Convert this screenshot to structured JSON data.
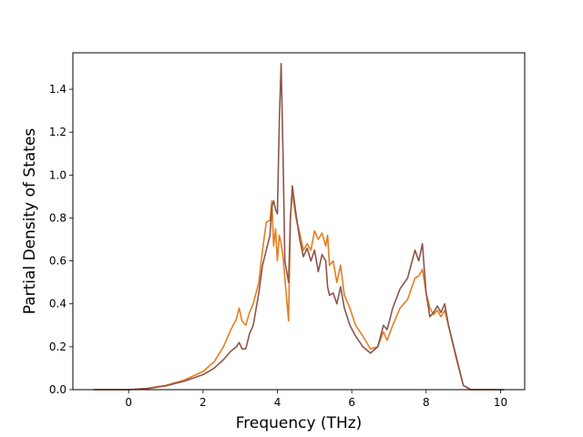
{
  "chart_data": {
    "type": "line",
    "title": "",
    "xlabel": "Frequency (THz)",
    "ylabel": "Partial Density of States",
    "xlim": [
      -1.5,
      10.65
    ],
    "ylim": [
      0.0,
      1.57
    ],
    "xticks": [
      0,
      2,
      4,
      6,
      8,
      10
    ],
    "yticks": [
      0.0,
      0.2,
      0.4,
      0.6,
      0.8,
      1.0,
      1.2,
      1.4
    ],
    "xtick_labels": [
      "0",
      "2",
      "4",
      "6",
      "8",
      "10"
    ],
    "ytick_labels": [
      "0.0",
      "0.2",
      "0.4",
      "0.6",
      "0.8",
      "1.0",
      "1.2",
      "1.4"
    ],
    "grid": false,
    "legend": "none",
    "series": [
      {
        "color": "#e67e22",
        "points": [
          [
            -0.95,
            0.0
          ],
          [
            0,
            0.0
          ],
          [
            0.5,
            0.006
          ],
          [
            1.0,
            0.02
          ],
          [
            1.5,
            0.045
          ],
          [
            2.0,
            0.085
          ],
          [
            2.3,
            0.13
          ],
          [
            2.55,
            0.2
          ],
          [
            2.75,
            0.28
          ],
          [
            2.9,
            0.33
          ],
          [
            2.97,
            0.38
          ],
          [
            3.05,
            0.32
          ],
          [
            3.15,
            0.3
          ],
          [
            3.25,
            0.36
          ],
          [
            3.35,
            0.4
          ],
          [
            3.5,
            0.5
          ],
          [
            3.6,
            0.65
          ],
          [
            3.7,
            0.78
          ],
          [
            3.8,
            0.79
          ],
          [
            3.85,
            0.88
          ],
          [
            3.9,
            0.67
          ],
          [
            3.95,
            0.75
          ],
          [
            4.0,
            0.6
          ],
          [
            4.05,
            0.72
          ],
          [
            4.1,
            0.68
          ],
          [
            4.15,
            0.62
          ],
          [
            4.2,
            0.52
          ],
          [
            4.3,
            0.32
          ],
          [
            4.35,
            0.8
          ],
          [
            4.4,
            0.92
          ],
          [
            4.5,
            0.8
          ],
          [
            4.6,
            0.73
          ],
          [
            4.7,
            0.65
          ],
          [
            4.8,
            0.68
          ],
          [
            4.9,
            0.65
          ],
          [
            5.0,
            0.74
          ],
          [
            5.1,
            0.7
          ],
          [
            5.2,
            0.73
          ],
          [
            5.3,
            0.67
          ],
          [
            5.35,
            0.72
          ],
          [
            5.4,
            0.58
          ],
          [
            5.5,
            0.6
          ],
          [
            5.6,
            0.5
          ],
          [
            5.7,
            0.58
          ],
          [
            5.8,
            0.44
          ],
          [
            5.95,
            0.38
          ],
          [
            6.1,
            0.3
          ],
          [
            6.3,
            0.25
          ],
          [
            6.5,
            0.19
          ],
          [
            6.7,
            0.2
          ],
          [
            6.85,
            0.27
          ],
          [
            6.95,
            0.23
          ],
          [
            7.1,
            0.3
          ],
          [
            7.3,
            0.38
          ],
          [
            7.5,
            0.42
          ],
          [
            7.7,
            0.52
          ],
          [
            7.8,
            0.53
          ],
          [
            7.9,
            0.56
          ],
          [
            8.0,
            0.45
          ],
          [
            8.1,
            0.38
          ],
          [
            8.2,
            0.35
          ],
          [
            8.3,
            0.37
          ],
          [
            8.4,
            0.34
          ],
          [
            8.5,
            0.37
          ],
          [
            8.6,
            0.3
          ],
          [
            8.8,
            0.15
          ],
          [
            9.0,
            0.02
          ],
          [
            9.2,
            0.0
          ],
          [
            10.1,
            0.0
          ]
        ]
      },
      {
        "color": "#8c564b",
        "points": [
          [
            -0.95,
            0.0
          ],
          [
            0,
            0.0
          ],
          [
            0.5,
            0.005
          ],
          [
            1.0,
            0.018
          ],
          [
            1.5,
            0.04
          ],
          [
            2.0,
            0.07
          ],
          [
            2.3,
            0.1
          ],
          [
            2.55,
            0.14
          ],
          [
            2.75,
            0.18
          ],
          [
            2.9,
            0.2
          ],
          [
            2.97,
            0.22
          ],
          [
            3.05,
            0.19
          ],
          [
            3.15,
            0.19
          ],
          [
            3.25,
            0.26
          ],
          [
            3.35,
            0.3
          ],
          [
            3.5,
            0.45
          ],
          [
            3.6,
            0.58
          ],
          [
            3.7,
            0.65
          ],
          [
            3.8,
            0.72
          ],
          [
            3.85,
            0.85
          ],
          [
            3.9,
            0.88
          ],
          [
            3.95,
            0.84
          ],
          [
            4.0,
            0.82
          ],
          [
            4.05,
            1.25
          ],
          [
            4.1,
            1.52
          ],
          [
            4.15,
            1.1
          ],
          [
            4.2,
            0.6
          ],
          [
            4.3,
            0.5
          ],
          [
            4.35,
            0.8
          ],
          [
            4.4,
            0.95
          ],
          [
            4.5,
            0.82
          ],
          [
            4.6,
            0.7
          ],
          [
            4.7,
            0.62
          ],
          [
            4.8,
            0.66
          ],
          [
            4.9,
            0.6
          ],
          [
            5.0,
            0.65
          ],
          [
            5.1,
            0.55
          ],
          [
            5.2,
            0.63
          ],
          [
            5.3,
            0.6
          ],
          [
            5.35,
            0.48
          ],
          [
            5.4,
            0.44
          ],
          [
            5.5,
            0.45
          ],
          [
            5.6,
            0.4
          ],
          [
            5.7,
            0.48
          ],
          [
            5.8,
            0.38
          ],
          [
            5.95,
            0.3
          ],
          [
            6.1,
            0.25
          ],
          [
            6.3,
            0.2
          ],
          [
            6.5,
            0.17
          ],
          [
            6.7,
            0.2
          ],
          [
            6.85,
            0.3
          ],
          [
            6.95,
            0.28
          ],
          [
            7.1,
            0.38
          ],
          [
            7.3,
            0.47
          ],
          [
            7.5,
            0.52
          ],
          [
            7.7,
            0.65
          ],
          [
            7.8,
            0.6
          ],
          [
            7.9,
            0.68
          ],
          [
            8.0,
            0.45
          ],
          [
            8.1,
            0.34
          ],
          [
            8.2,
            0.36
          ],
          [
            8.3,
            0.39
          ],
          [
            8.4,
            0.36
          ],
          [
            8.5,
            0.4
          ],
          [
            8.6,
            0.3
          ],
          [
            8.8,
            0.16
          ],
          [
            9.0,
            0.02
          ],
          [
            9.2,
            0.0
          ],
          [
            10.1,
            0.0
          ]
        ]
      }
    ]
  }
}
